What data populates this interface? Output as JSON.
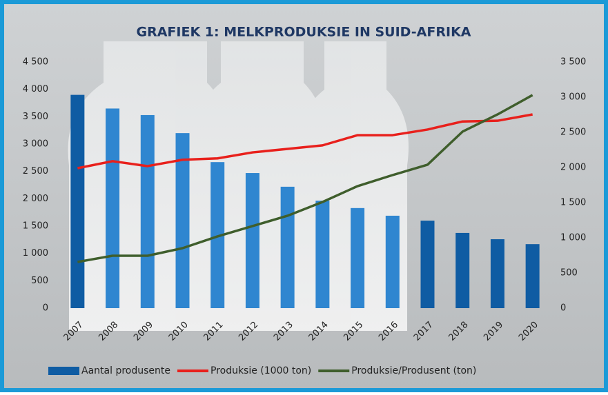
{
  "chart_data": {
    "type": "bar-line",
    "title": "GRAFIEK 1: MELKPRODUKSIE IN SUID-AFRIKA",
    "categories": [
      "2007",
      "2008",
      "2009",
      "2010",
      "2011",
      "2012",
      "2013",
      "2014",
      "2015",
      "2016",
      "2017",
      "2018",
      "2019",
      "2020"
    ],
    "series": [
      {
        "name": "Aantal produsente",
        "type": "bar",
        "color": "#0f5ca3",
        "colors": [
          "#0f5ca3",
          "#2f86d0",
          "#2f86d0",
          "#2f86d0",
          "#2f86d0",
          "#2f86d0",
          "#2f86d0",
          "#2f86d0",
          "#2f86d0",
          "#2f86d0",
          "#0f5ca3",
          "#0f5ca3",
          "#0f5ca3",
          "#0f5ca3"
        ],
        "values": [
          3900,
          3650,
          3530,
          3200,
          2670,
          2470,
          2220,
          1965,
          1830,
          1690,
          1600,
          1375,
          1260,
          1170
        ]
      },
      {
        "name": "Produksie (1000 ton)",
        "type": "line",
        "axis": "y2",
        "color": "#e8201c",
        "values": [
          1990,
          2090,
          2020,
          2110,
          2130,
          2215,
          2265,
          2315,
          2460,
          2460,
          2540,
          2655,
          2665,
          2755
        ]
      },
      {
        "name": "Produksie/Produsent (ton)",
        "type": "line",
        "axis": "y2",
        "color": "#3f5e2c",
        "values": [
          657,
          745,
          745,
          853,
          1020,
          1167,
          1314,
          1510,
          1735,
          1892,
          2040,
          2510,
          2755,
          3030
        ]
      }
    ],
    "ylim": [
      0,
      4500
    ],
    "yticks": [
      0,
      500,
      {
        "value": 1000,
        "label": "1 000"
      },
      {
        "value": 1500,
        "label": "1 500"
      },
      {
        "value": 2000,
        "label": "2 000"
      },
      {
        "value": 2500,
        "label": "2 500"
      },
      {
        "value": 3000,
        "label": "3 000"
      },
      {
        "value": 3500,
        "label": "3 500"
      },
      {
        "value": 4000,
        "label": "4 000"
      },
      {
        "value": 4500,
        "label": "4 500"
      }
    ],
    "y2lim": [
      0,
      3500
    ],
    "y2ticks": [
      0,
      500,
      {
        "value": 1000,
        "label": "1 000"
      },
      {
        "value": 1500,
        "label": "1 500"
      },
      {
        "value": 2000,
        "label": "2 000"
      },
      {
        "value": 2500,
        "label": "2 500"
      },
      {
        "value": 3000,
        "label": "3 000"
      },
      {
        "value": 3500,
        "label": "3 500"
      }
    ],
    "legend": "bottom"
  }
}
